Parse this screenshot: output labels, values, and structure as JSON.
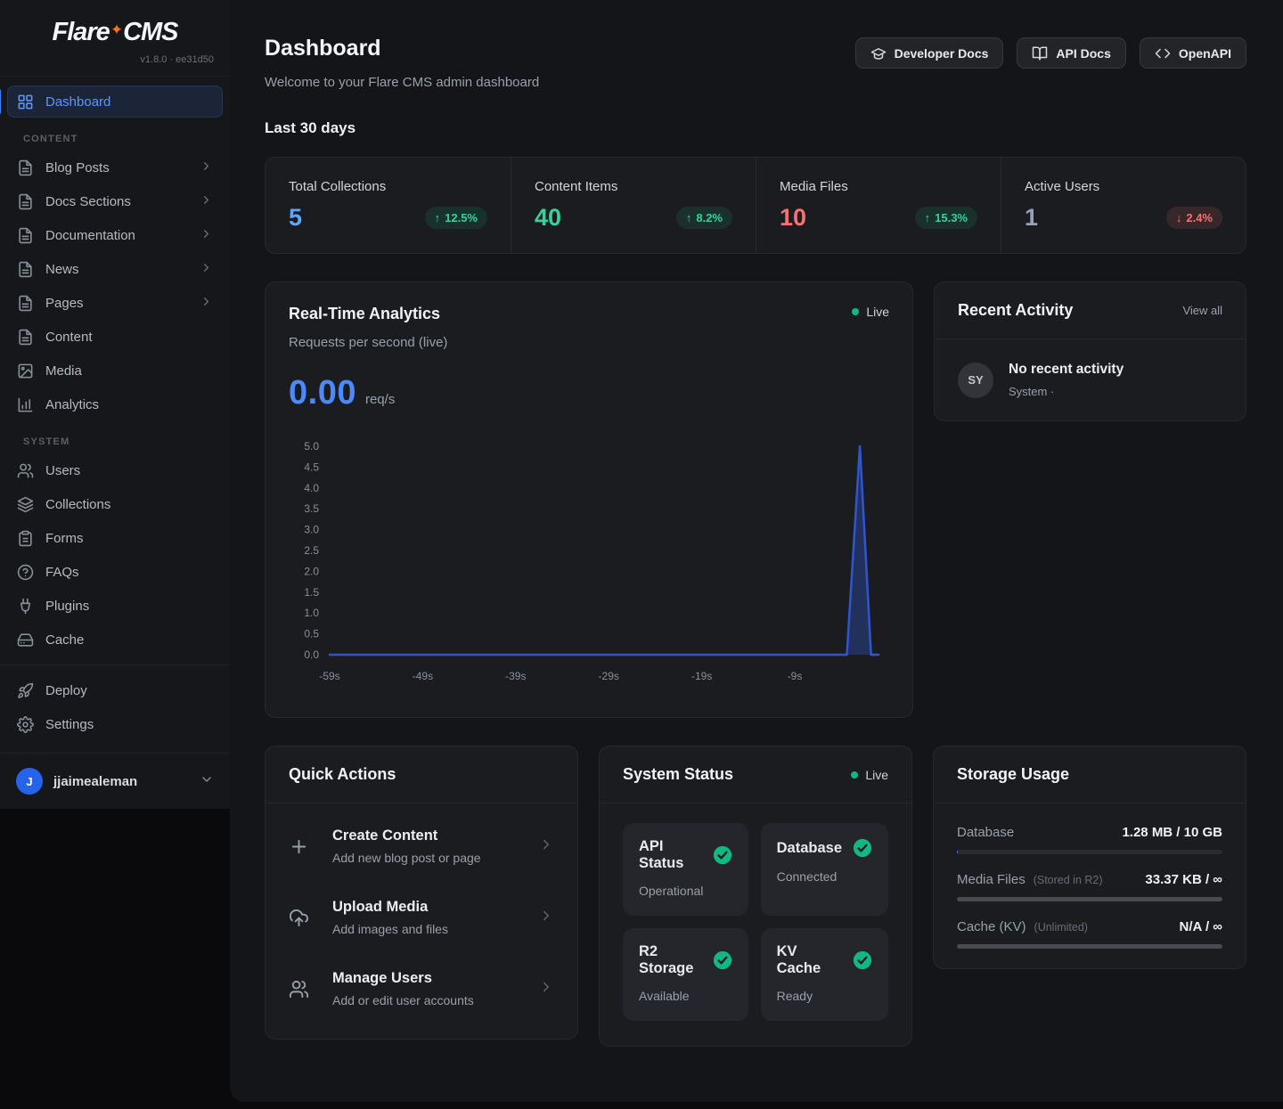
{
  "app": {
    "logo_left": "Flare",
    "logo_right": "CMS",
    "spark_icon": "✦",
    "version": "v1.8.0 · ee31d50"
  },
  "sidebar": {
    "dashboard": {
      "label": "Dashboard"
    },
    "content": {
      "label": "CONTENT",
      "items": [
        {
          "label": "Blog Posts",
          "icon": "file-text",
          "chevron": true
        },
        {
          "label": "Docs Sections",
          "icon": "file-text",
          "chevron": true
        },
        {
          "label": "Documentation",
          "icon": "file-text",
          "chevron": true
        },
        {
          "label": "News",
          "icon": "file-text",
          "chevron": true
        },
        {
          "label": "Pages",
          "icon": "file-text",
          "chevron": true
        },
        {
          "label": "Content",
          "icon": "file-text",
          "chevron": false
        },
        {
          "label": "Media",
          "icon": "image",
          "chevron": false
        },
        {
          "label": "Analytics",
          "icon": "bar-chart",
          "chevron": false
        }
      ]
    },
    "system": {
      "label": "SYSTEM",
      "items": [
        {
          "label": "Users",
          "icon": "users"
        },
        {
          "label": "Collections",
          "icon": "layers"
        },
        {
          "label": "Forms",
          "icon": "clipboard"
        },
        {
          "label": "FAQs",
          "icon": "help-circle"
        },
        {
          "label": "Plugins",
          "icon": "plug"
        },
        {
          "label": "Cache",
          "icon": "hard-drive"
        }
      ]
    },
    "footer_items": [
      {
        "label": "Deploy",
        "icon": "rocket"
      },
      {
        "label": "Settings",
        "icon": "gear"
      }
    ],
    "user": {
      "initial": "J",
      "name": "jjaimealeman"
    }
  },
  "header": {
    "title": "Dashboard",
    "subtitle": "Welcome to your Flare CMS admin dashboard",
    "buttons": [
      {
        "label": "Developer Docs",
        "icon": "graduation-cap"
      },
      {
        "label": "API Docs",
        "icon": "book-open"
      },
      {
        "label": "OpenAPI",
        "icon": "code"
      }
    ]
  },
  "period_label": "Last 30 days",
  "stats": [
    {
      "label": "Total Collections",
      "value": "5",
      "value_color": "#60a5fa",
      "delta": "12.5%",
      "direction": "up"
    },
    {
      "label": "Content Items",
      "value": "40",
      "value_color": "#34d399",
      "delta": "8.2%",
      "direction": "up"
    },
    {
      "label": "Media Files",
      "value": "10",
      "value_color": "#f87171",
      "delta": "15.3%",
      "direction": "up"
    },
    {
      "label": "Active Users",
      "value": "1",
      "value_color": "#94a3b8",
      "delta": "2.4%",
      "direction": "down"
    }
  ],
  "analytics": {
    "title": "Real-Time Analytics",
    "subtitle": "Requests per second (live)",
    "live_label": "Live",
    "value": "0.00",
    "unit": "req/s"
  },
  "chart_data": {
    "type": "line",
    "title": "Requests per second (live)",
    "x": {
      "range": [
        -59,
        0
      ],
      "ticks": [
        {
          "t": -59,
          "label": "-59s"
        },
        {
          "t": -49,
          "label": "-49s"
        },
        {
          "t": -39,
          "label": "-39s"
        },
        {
          "t": -29,
          "label": "-29s"
        },
        {
          "t": -19,
          "label": "-19s"
        },
        {
          "t": -9,
          "label": "-9s"
        }
      ]
    },
    "y": {
      "min": 0,
      "max": 5,
      "ticks": [
        "5.0",
        "4.5",
        "4.0",
        "3.5",
        "3.0",
        "2.5",
        "2.0",
        "1.5",
        "1.0",
        "0.5",
        "0.0"
      ]
    },
    "series": [
      {
        "name": "Requests per second",
        "color": "#3056cf",
        "fill": "rgba(48,86,207,0.35)",
        "points": [
          [
            -59,
            0
          ],
          [
            -40,
            0
          ],
          [
            -20,
            0
          ],
          [
            -10,
            0
          ],
          [
            -3.4,
            0
          ],
          [
            -2,
            5
          ],
          [
            -0.8,
            0
          ],
          [
            0,
            0
          ]
        ]
      }
    ],
    "grid": false,
    "legend": false
  },
  "recent_activity": {
    "title": "Recent Activity",
    "view_all": "View all",
    "item": {
      "avatar": "SY",
      "title": "No recent activity",
      "meta": "System ·"
    }
  },
  "quick_actions": {
    "title": "Quick Actions",
    "items": [
      {
        "title": "Create Content",
        "subtitle": "Add new blog post or page",
        "icon": "plus"
      },
      {
        "title": "Upload Media",
        "subtitle": "Add images and files",
        "icon": "upload-cloud"
      },
      {
        "title": "Manage Users",
        "subtitle": "Add or edit user accounts",
        "icon": "users"
      }
    ]
  },
  "system_status": {
    "title": "System Status",
    "live_label": "Live",
    "tiles": [
      {
        "name": "API Status",
        "status": "Operational",
        "icon": "check-circle"
      },
      {
        "name": "Database",
        "status": "Connected",
        "icon": "check-circle"
      },
      {
        "name": "R2 Storage",
        "status": "Available",
        "icon": "check-circle"
      },
      {
        "name": "KV Cache",
        "status": "Ready",
        "icon": "check-circle"
      }
    ]
  },
  "storage": {
    "title": "Storage Usage",
    "rows": [
      {
        "name": "Database",
        "note": "",
        "value": "1.28 MB / 10 GB",
        "fill_percent": 0.5,
        "fill_color": "#3b82f6"
      },
      {
        "name": "Media Files",
        "note": "(Stored in R2)",
        "value": "33.37 KB / ∞",
        "fill_percent": 100,
        "fill_color": "#4a4b51"
      },
      {
        "name": "Cache (KV)",
        "note": "(Unlimited)",
        "value": "N/A / ∞",
        "fill_percent": 100,
        "fill_color": "#4a4b51"
      }
    ]
  },
  "colors": {
    "accent": "#3b82f6",
    "success": "#10b981",
    "danger": "#f87171",
    "chart_line": "#3056cf"
  }
}
